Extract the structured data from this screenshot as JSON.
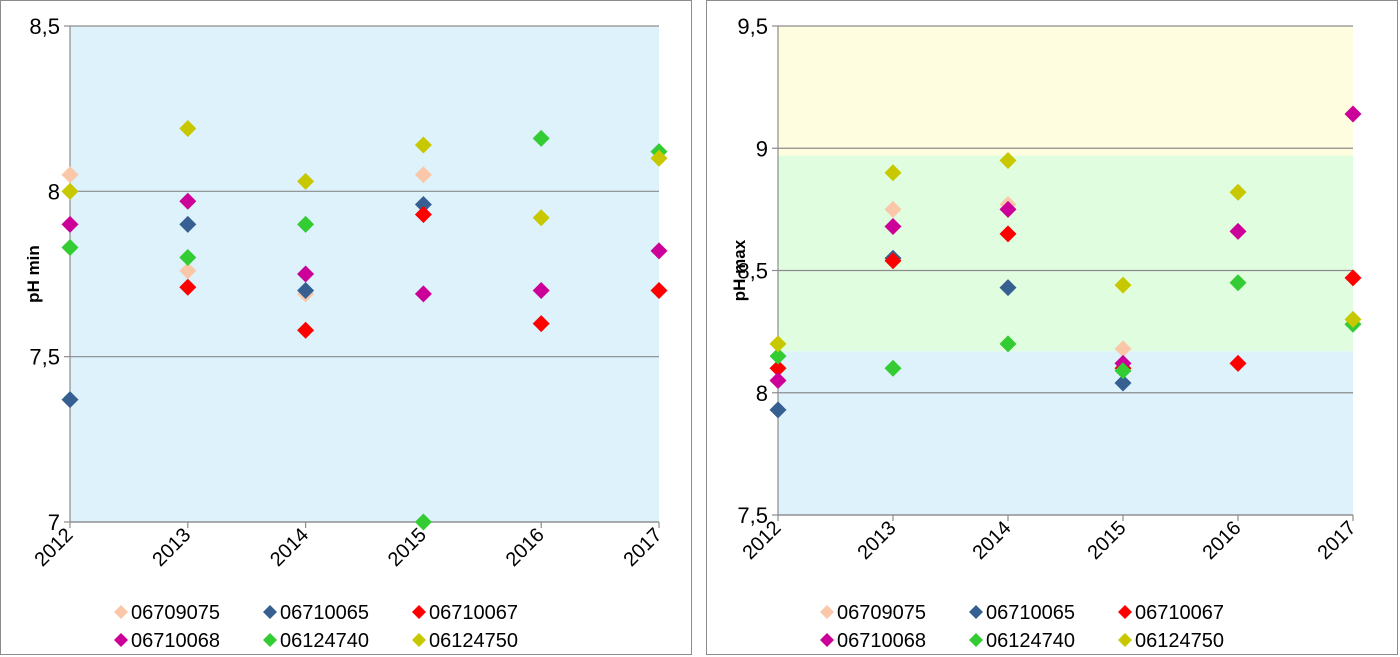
{
  "chart_data": [
    {
      "type": "scatter",
      "title": "",
      "xlabel": "",
      "ylabel": "pH min",
      "x": [
        "2012",
        "2013",
        "2014",
        "2015",
        "2016",
        "2017"
      ],
      "ylim": [
        7,
        8.5
      ],
      "yticks": [
        7,
        7.5,
        8,
        8.5
      ],
      "ytick_labels": [
        "7",
        "7,5",
        "8",
        "8,5"
      ],
      "grid": true,
      "legend": "bottom",
      "bands": [
        {
          "from": 7,
          "to": 8.5,
          "color": "#ddf2fb"
        }
      ],
      "series": [
        {
          "name": "06709075",
          "color": "#fac8a8",
          "values": [
            8.05,
            7.76,
            7.69,
            8.05,
            null,
            null
          ]
        },
        {
          "name": "06710065",
          "color": "#376092",
          "values": [
            7.37,
            7.9,
            7.7,
            7.96,
            null,
            null
          ]
        },
        {
          "name": "06710067",
          "color": "#ff0000",
          "values": [
            null,
            7.71,
            7.58,
            7.93,
            7.6,
            7.7
          ]
        },
        {
          "name": "06710068",
          "color": "#cc0099",
          "values": [
            7.9,
            7.97,
            7.75,
            7.69,
            7.7,
            7.82
          ]
        },
        {
          "name": "06124740",
          "color": "#33cc33",
          "values": [
            7.83,
            7.8,
            7.9,
            7.0,
            8.16,
            8.12
          ]
        },
        {
          "name": "06124750",
          "color": "#c8c800",
          "values": [
            8.0,
            8.19,
            8.03,
            8.14,
            7.92,
            8.1
          ]
        }
      ]
    },
    {
      "type": "scatter",
      "title": "",
      "xlabel": "",
      "ylabel": "pH max",
      "x": [
        "2012",
        "2013",
        "2014",
        "2015",
        "2016",
        "2017"
      ],
      "ylim": [
        7.5,
        9.5
      ],
      "yticks": [
        7.5,
        8,
        8.5,
        9,
        9.5
      ],
      "ytick_labels": [
        "7,5",
        "8",
        "8,5",
        "9",
        "9,5"
      ],
      "grid": true,
      "legend": "bottom",
      "bands": [
        {
          "from": 7.5,
          "to": 8.17,
          "color": "#ddf2fb"
        },
        {
          "from": 8.17,
          "to": 8.97,
          "color": "#e1fde0"
        },
        {
          "from": 8.97,
          "to": 9.5,
          "color": "#fefde0"
        }
      ],
      "series": [
        {
          "name": "06709075",
          "color": "#fac8a8",
          "values": [
            null,
            8.75,
            8.77,
            8.18,
            null,
            null
          ]
        },
        {
          "name": "06710065",
          "color": "#376092",
          "values": [
            7.93,
            8.55,
            8.43,
            8.04,
            null,
            null
          ]
        },
        {
          "name": "06710067",
          "color": "#ff0000",
          "values": [
            8.1,
            8.54,
            8.65,
            8.1,
            8.12,
            8.47
          ]
        },
        {
          "name": "06710068",
          "color": "#cc0099",
          "values": [
            8.05,
            8.68,
            8.75,
            8.12,
            8.66,
            9.14
          ]
        },
        {
          "name": "06124740",
          "color": "#33cc33",
          "values": [
            8.15,
            8.1,
            8.2,
            8.09,
            8.45,
            8.28
          ]
        },
        {
          "name": "06124750",
          "color": "#c8c800",
          "values": [
            8.2,
            8.9,
            8.95,
            8.44,
            8.82,
            8.3
          ]
        }
      ]
    }
  ]
}
